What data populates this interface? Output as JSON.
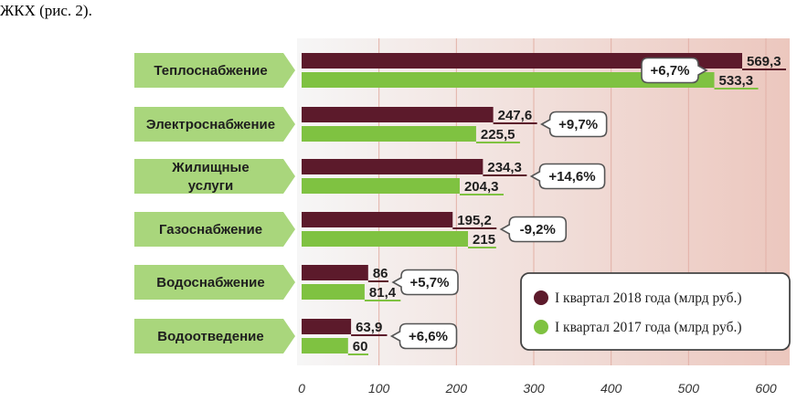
{
  "document": {
    "text": "ЖКХ (рис. 2)."
  },
  "chart_data": {
    "type": "bar",
    "orientation": "horizontal",
    "categories": [
      "Теплоснабжение",
      "Электроснабжение",
      "Жилищные услуги",
      "Газоснабжение",
      "Водоснабжение",
      "Водоотведение"
    ],
    "category_lines": [
      [
        "Теплоснабжение"
      ],
      [
        "Электроснабжение"
      ],
      [
        "Жилищные",
        "услуги"
      ],
      [
        "Газоснабжение"
      ],
      [
        "Водоснабжение"
      ],
      [
        "Водоотведение"
      ]
    ],
    "series": [
      {
        "name": "I квартал 2018 года (млрд руб.)",
        "color": "#5c1a2b",
        "values": [
          569.3,
          247.6,
          234.3,
          195.2,
          86,
          63.9
        ],
        "labels": [
          "569,3",
          "247,6",
          "234,3",
          "195,2",
          "86",
          "63,9"
        ]
      },
      {
        "name": "I квартал 2017 года (млрд руб.)",
        "color": "#7fc241",
        "values": [
          533.3,
          225.5,
          204.3,
          215,
          81.4,
          60
        ],
        "labels": [
          "533,3",
          "225,5",
          "204,3",
          "215",
          "81,4",
          "60"
        ]
      }
    ],
    "changes": [
      "+6,7%",
      "+9,7%",
      "+14,6%",
      "-9,2%",
      "+5,7%",
      "+6,6%"
    ],
    "xlim": [
      0,
      600
    ],
    "xticks": [
      0,
      100,
      200,
      300,
      400,
      500,
      600
    ],
    "grid": true,
    "legend_position": "bottom-right",
    "colors": {
      "plot_bg_left": "#f6f6f6",
      "plot_bg_right": "#ecc7be",
      "category_tab": "#a9d67c",
      "gridline": "#e2b0a6",
      "callout_border": "#555555"
    }
  }
}
